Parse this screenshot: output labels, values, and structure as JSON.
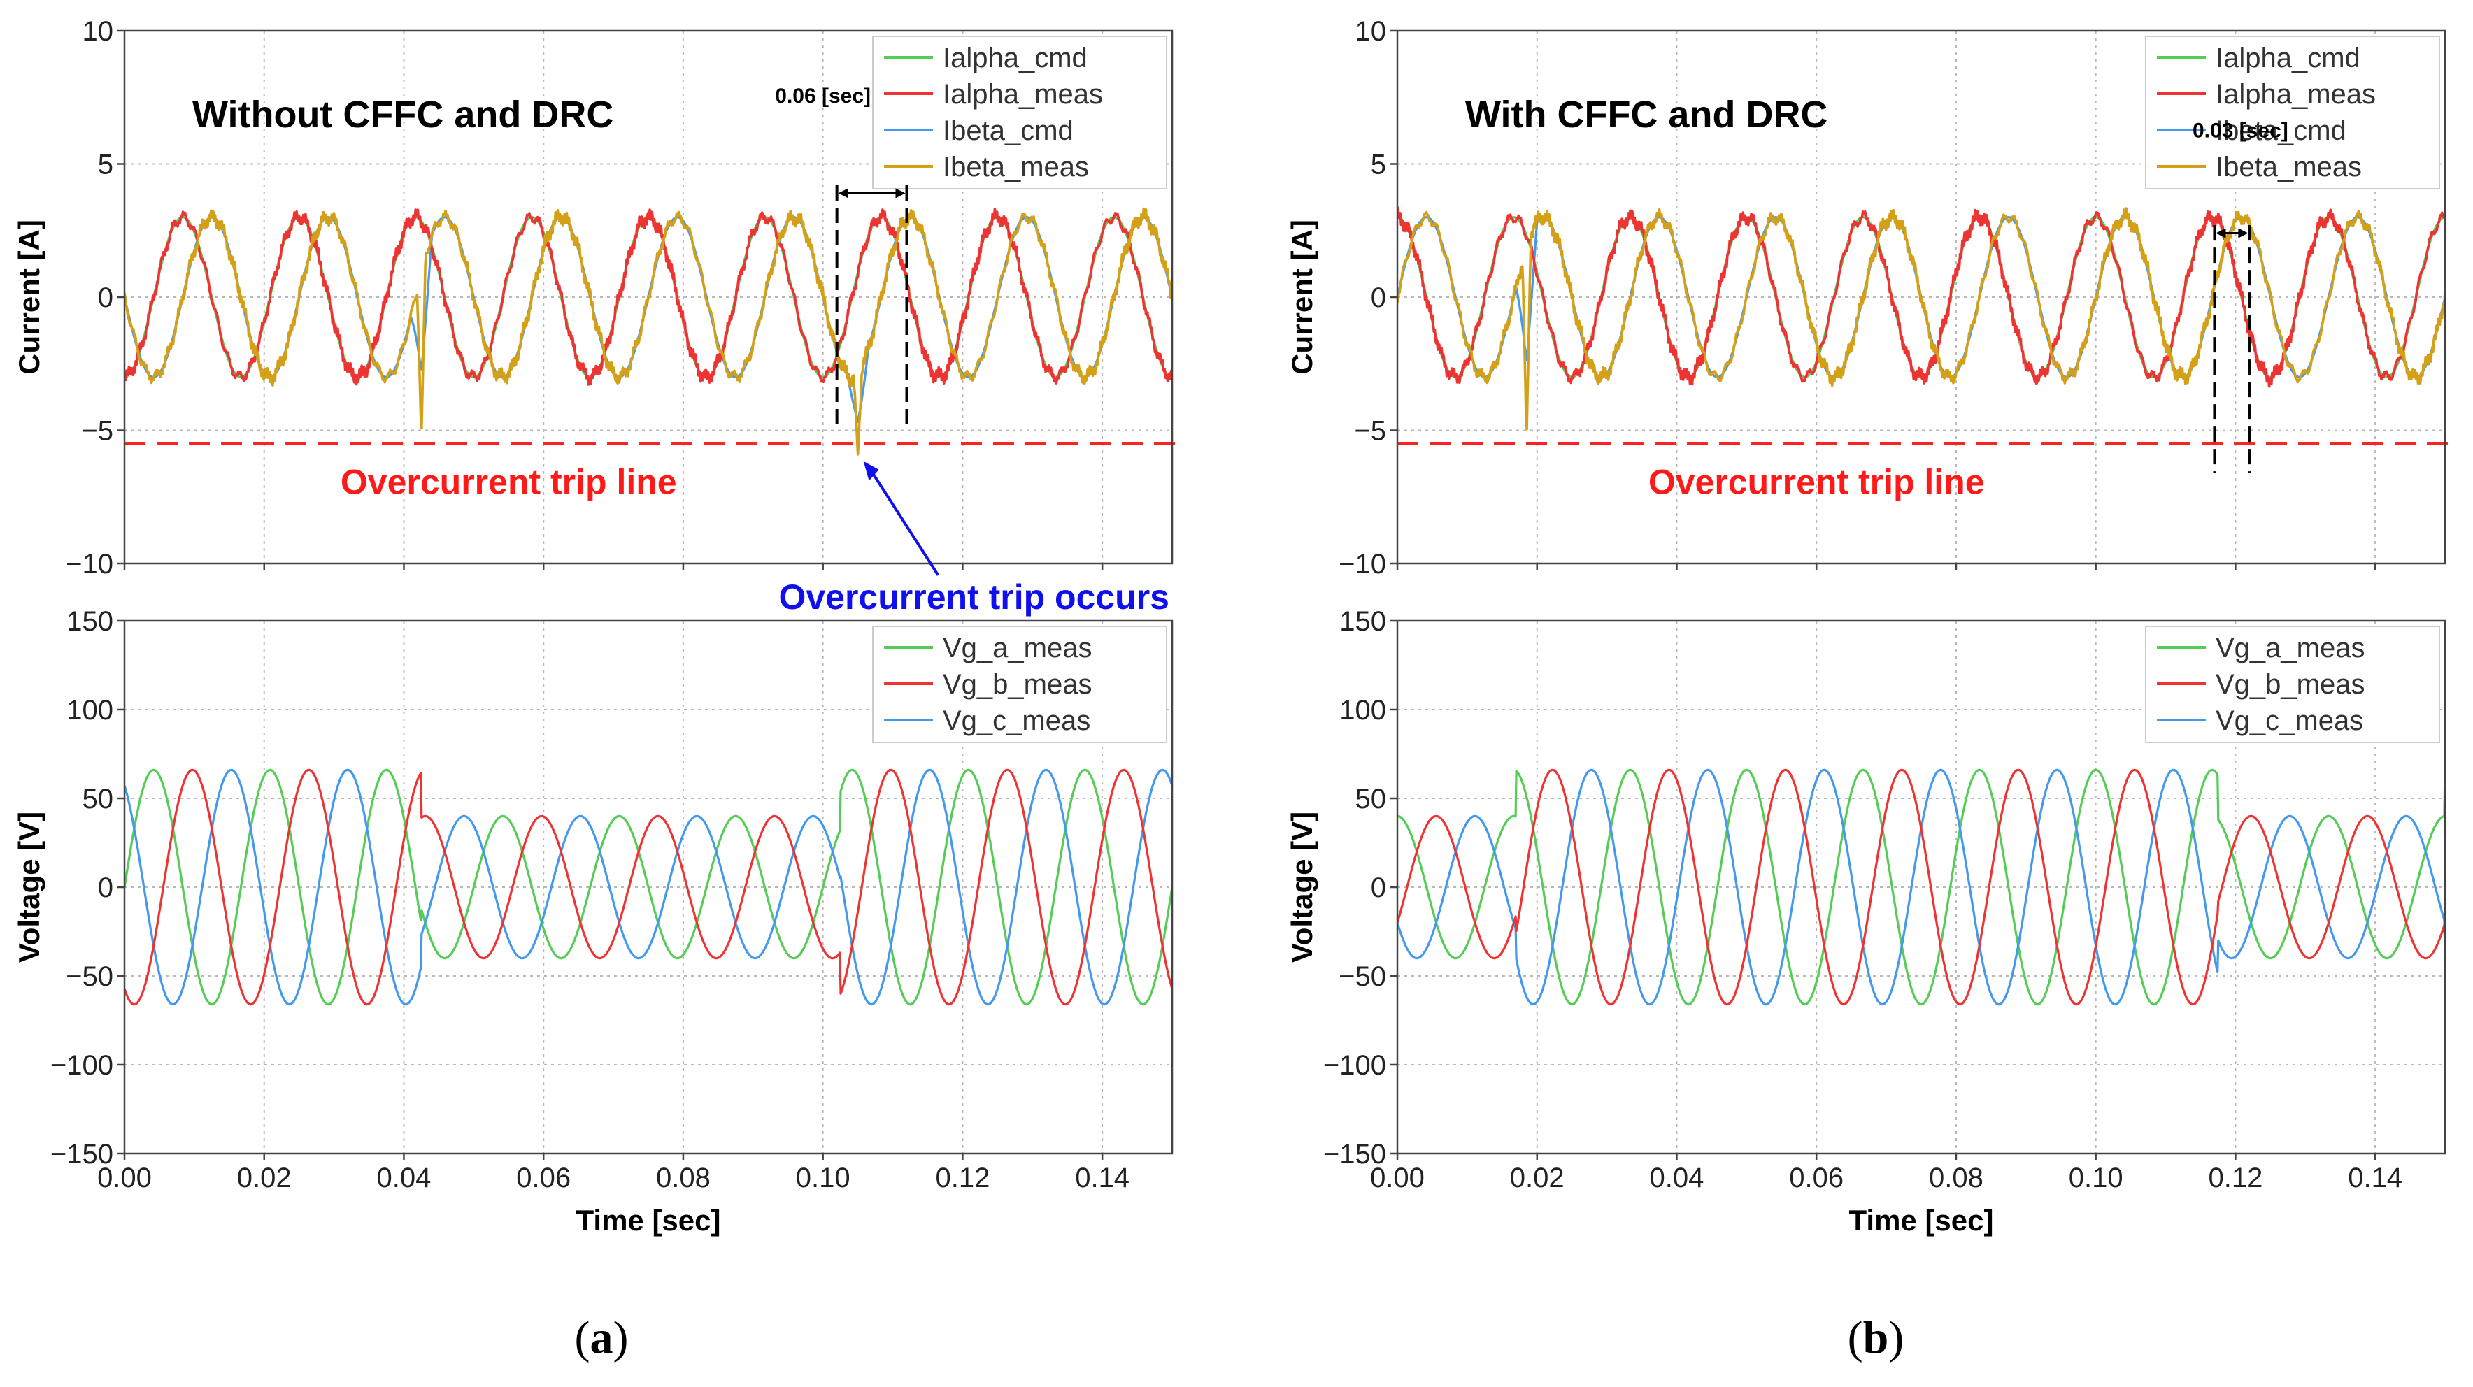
{
  "colors": {
    "green": "#55cc55",
    "red": "#ee3333",
    "blue": "#4499ee",
    "gold": "#d4a017",
    "trip_line": "#ff2222",
    "trip_text": "#ff1a1a",
    "occurs_text": "#1010ee"
  },
  "panels": [
    {
      "label_open": "(",
      "label_letter": "a",
      "label_close": ")"
    },
    {
      "label_open": "(",
      "label_letter": "b",
      "label_close": ")"
    }
  ],
  "chart_data": [
    {
      "panel": "a",
      "type": "line",
      "title": "Without CFFC and DRC",
      "xlabel": "",
      "ylabel": "Current [A]",
      "xlim": [
        0,
        0.15
      ],
      "ylim": [
        -10,
        10
      ],
      "xticks": [
        "0.00",
        "0.02",
        "0.04",
        "0.06",
        "0.08",
        "0.10",
        "0.12",
        "0.14"
      ],
      "yticks": [
        "10",
        "5",
        "0",
        "−5",
        "−10"
      ],
      "grid": true,
      "legend": "top-right",
      "series": [
        {
          "name": "Ialpha_cmd",
          "color": "green",
          "model": "sine",
          "amplitude": 3.0,
          "frequency_hz": 60,
          "phase_deg": -90
        },
        {
          "name": "Ialpha_meas",
          "color": "red",
          "model": "sine",
          "amplitude": 3.0,
          "frequency_hz": 60,
          "phase_deg": -90,
          "noisy": true
        },
        {
          "name": "Ibeta_cmd",
          "color": "blue",
          "model": "sine",
          "amplitude": 3.0,
          "frequency_hz": 60,
          "phase_deg": -180
        },
        {
          "name": "Ibeta_meas",
          "color": "gold",
          "model": "sine",
          "amplitude": 3.0,
          "frequency_hz": 60,
          "phase_deg": -180,
          "noisy": true
        }
      ],
      "hlines": [
        {
          "y": -5.5,
          "label": "Overcurrent trip line",
          "style": "dashed"
        }
      ],
      "spikes": [
        {
          "x": 0.0425,
          "y": -5.3
        },
        {
          "x": 0.105,
          "y": -5.9
        }
      ],
      "interval": {
        "x0": 0.102,
        "x1": 0.112,
        "label": "0.06 [sec]"
      },
      "callout": {
        "label": "Overcurrent trip occurs",
        "target_x": 0.105,
        "target_y": -5.9
      }
    },
    {
      "panel": "a",
      "type": "line",
      "title": "",
      "xlabel": "Time [sec]",
      "ylabel": "Voltage [V]",
      "xlim": [
        0,
        0.15
      ],
      "ylim": [
        -150,
        150
      ],
      "xticks": [
        "0.00",
        "0.02",
        "0.04",
        "0.06",
        "0.08",
        "0.10",
        "0.12",
        "0.14"
      ],
      "yticks": [
        "150",
        "100",
        "50",
        "0",
        "−50",
        "−100",
        "−150"
      ],
      "grid": true,
      "legend": "top-right",
      "series": [
        {
          "name": "Vg_a_meas",
          "color": "green",
          "model": "three-phase",
          "normal_amplitude": 66,
          "sag_amplitude": 40,
          "frequency_hz": 60,
          "phase_deg": 0
        },
        {
          "name": "Vg_b_meas",
          "color": "red",
          "model": "three-phase",
          "normal_amplitude": 66,
          "sag_amplitude": 40,
          "frequency_hz": 60,
          "phase_deg": -120
        },
        {
          "name": "Vg_c_meas",
          "color": "blue",
          "model": "three-phase",
          "normal_amplitude": 66,
          "sag_amplitude": 40,
          "frequency_hz": 60,
          "phase_deg": 120
        }
      ],
      "sag_windows": [
        [
          0.0425,
          0.1025
        ]
      ]
    },
    {
      "panel": "b",
      "type": "line",
      "title": "With CFFC and DRC",
      "xlabel": "",
      "ylabel": "Current [A]",
      "xlim": [
        0,
        0.15
      ],
      "ylim": [
        -10,
        10
      ],
      "xticks": [
        "0.00",
        "0.02",
        "0.04",
        "0.06",
        "0.08",
        "0.10",
        "0.12",
        "0.14"
      ],
      "yticks": [
        "10",
        "5",
        "0",
        "−5",
        "−10"
      ],
      "grid": true,
      "legend": "top-right",
      "series": [
        {
          "name": "Ialpha_cmd",
          "color": "green",
          "model": "sine",
          "amplitude": 3.0,
          "frequency_hz": 60,
          "phase_deg": 90
        },
        {
          "name": "Ialpha_meas",
          "color": "red",
          "model": "sine",
          "amplitude": 3.0,
          "frequency_hz": 60,
          "phase_deg": 90,
          "noisy": true
        },
        {
          "name": "Ibeta_cmd",
          "color": "blue",
          "model": "sine",
          "amplitude": 3.0,
          "frequency_hz": 60,
          "phase_deg": 0
        },
        {
          "name": "Ibeta_meas",
          "color": "gold",
          "model": "sine",
          "amplitude": 3.0,
          "frequency_hz": 60,
          "phase_deg": 0,
          "noisy": true
        }
      ],
      "hlines": [
        {
          "y": -5.5,
          "label": "Overcurrent trip line",
          "style": "dashed"
        }
      ],
      "spikes": [
        {
          "x": 0.0185,
          "y": -5.4
        }
      ],
      "interval": {
        "x0": 0.117,
        "x1": 0.122,
        "label": "0.03 [sec]"
      }
    },
    {
      "panel": "b",
      "type": "line",
      "title": "",
      "xlabel": "Time [sec]",
      "ylabel": "Voltage [V]",
      "xlim": [
        0,
        0.15
      ],
      "ylim": [
        -150,
        150
      ],
      "xticks": [
        "0.00",
        "0.02",
        "0.04",
        "0.06",
        "0.08",
        "0.10",
        "0.12",
        "0.14"
      ],
      "yticks": [
        "150",
        "100",
        "50",
        "0",
        "−50",
        "−100",
        "−150"
      ],
      "grid": true,
      "legend": "top-right",
      "series": [
        {
          "name": "Vg_a_meas",
          "color": "green",
          "model": "three-phase",
          "normal_amplitude": 66,
          "sag_amplitude": 40,
          "frequency_hz": 60,
          "phase_deg": 90
        },
        {
          "name": "Vg_b_meas",
          "color": "red",
          "model": "three-phase",
          "normal_amplitude": 66,
          "sag_amplitude": 40,
          "frequency_hz": 60,
          "phase_deg": -30
        },
        {
          "name": "Vg_c_meas",
          "color": "blue",
          "model": "three-phase",
          "normal_amplitude": 66,
          "sag_amplitude": 40,
          "frequency_hz": 60,
          "phase_deg": 210
        }
      ],
      "sag_windows": [
        [
          0,
          0.017
        ],
        [
          0.1175,
          0.15
        ]
      ]
    }
  ]
}
